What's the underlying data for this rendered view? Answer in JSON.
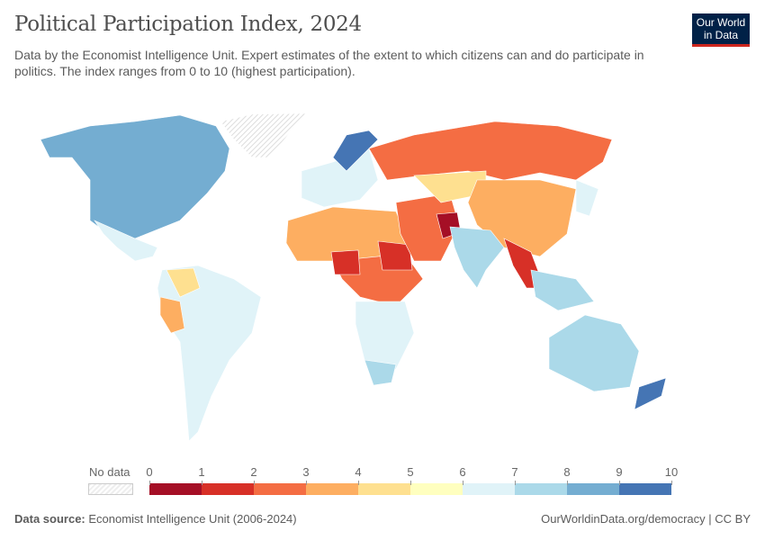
{
  "header": {
    "title": "Political Participation Index, 2024",
    "subtitle": "Data by the Economist Intelligence Unit. Expert estimates of the extent to which citizens can and do participate in politics. The index ranges from 0 to 10 (highest participation).",
    "logo": {
      "line1": "Our World",
      "line2": "in Data"
    }
  },
  "legend": {
    "no_data_label": "No data",
    "ticks": [
      "0",
      "1",
      "2",
      "3",
      "4",
      "5",
      "6",
      "7",
      "8",
      "9",
      "10"
    ],
    "colors": [
      "#a50f26",
      "#d73027",
      "#f46d43",
      "#fdae61",
      "#fee090",
      "#ffffbf",
      "#e0f3f8",
      "#abd9e9",
      "#74add1",
      "#4575b4"
    ]
  },
  "footer": {
    "source_label": "Data source:",
    "source": "Economist Intelligence Unit (2006-2024)",
    "link": "OurWorldinData.org/democracy | CC BY"
  }
}
